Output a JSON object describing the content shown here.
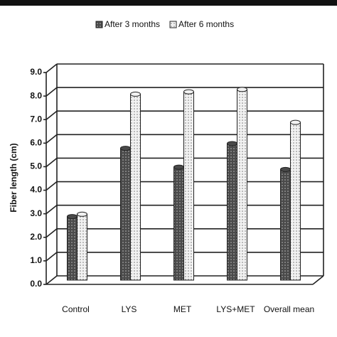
{
  "chart_data": {
    "type": "bar",
    "categories": [
      "Control",
      "LYS",
      "MET",
      "LYS+MET",
      "Overall mean"
    ],
    "series": [
      {
        "name": "After 3 months",
        "color": "#4a4a4a",
        "values": [
          2.7,
          5.6,
          4.8,
          5.8,
          4.7
        ]
      },
      {
        "name": "After 6 months",
        "color": "#f2f2f2",
        "values": [
          2.8,
          7.9,
          8.0,
          8.1,
          6.7
        ]
      }
    ],
    "y_label": "Fiber length (cm)",
    "ylim": [
      0,
      9
    ],
    "yticks": [
      {
        "value": 0,
        "label": "0.0"
      },
      {
        "value": 1,
        "label": "1.0"
      },
      {
        "value": 2,
        "label": "2.0"
      },
      {
        "value": 3,
        "label": "3.0"
      },
      {
        "value": 4,
        "label": "4.0"
      },
      {
        "value": 5,
        "label": "5.0"
      },
      {
        "value": 6,
        "label": "6.0"
      },
      {
        "value": 7,
        "label": "7.0"
      },
      {
        "value": 8,
        "label": "8.0"
      },
      {
        "value": 9,
        "label": "9.0"
      }
    ],
    "grid": true
  }
}
